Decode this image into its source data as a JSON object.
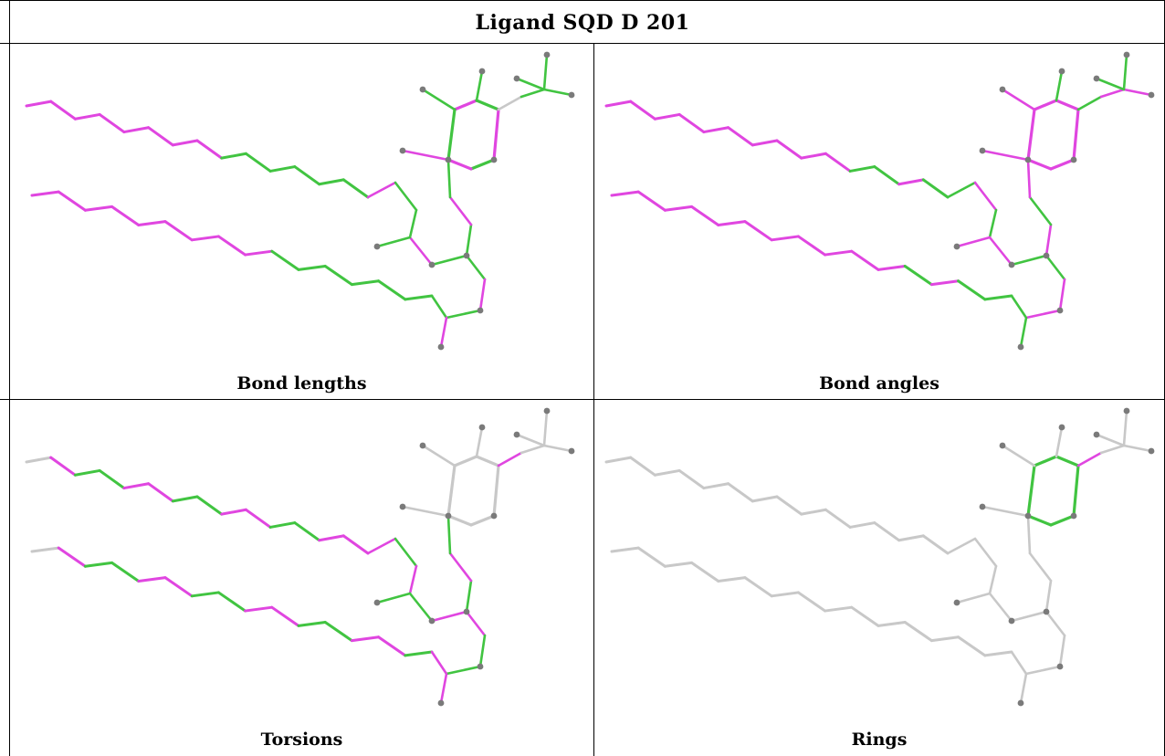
{
  "title": "Ligand SQD D 201",
  "panels": [
    {
      "key": "bond_lengths",
      "caption": "Bond lengths"
    },
    {
      "key": "bond_angles",
      "caption": "Bond angles"
    },
    {
      "key": "torsions",
      "caption": "Torsions"
    },
    {
      "key": "rings",
      "caption": "Rings"
    }
  ],
  "colors": {
    "outlier": "#e046e0",
    "ok": "#41c441",
    "none": "#c8c8c8",
    "atom": "#7a7a7a",
    "border": "#000000"
  }
}
